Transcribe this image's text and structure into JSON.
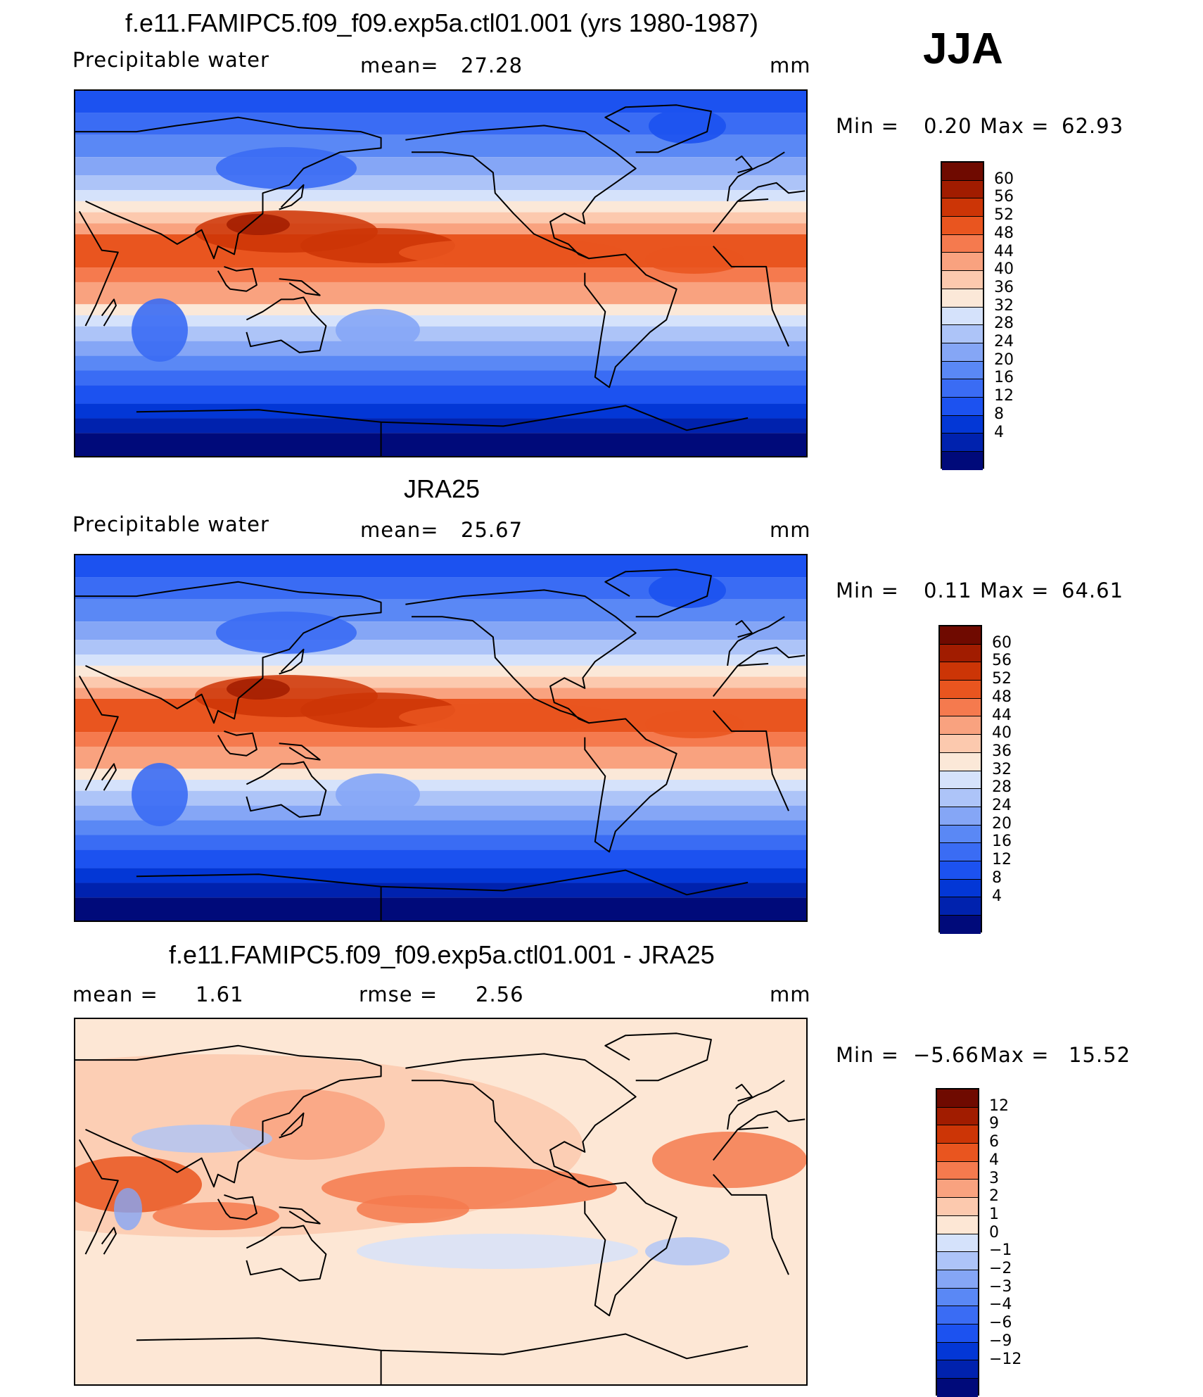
{
  "season": "JJA",
  "units": "mm",
  "palettes": {
    "absolute": [
      "#000a7a",
      "#0022ae",
      "#0337d6",
      "#1c52f0",
      "#3a6cf4",
      "#5a88f5",
      "#85a6f6",
      "#adc4f8",
      "#d5e2fb",
      "#fbe8d8",
      "#fcc9ae",
      "#f9a27f",
      "#f57a4e",
      "#e9551f",
      "#cc3506",
      "#a11c00",
      "#6f0a00"
    ],
    "difference": [
      "#000a7a",
      "#0022ae",
      "#0337d6",
      "#1c52f0",
      "#3a6cf4",
      "#5a88f5",
      "#85a6f6",
      "#adc4f8",
      "#d5e2fb",
      "#fde7d5",
      "#fcc9ae",
      "#f9a27f",
      "#f57a4e",
      "#e9551f",
      "#cc3506",
      "#a11c00",
      "#6f0a00"
    ]
  },
  "panels": [
    {
      "title": "f.e11.FAMIPC5.f09_f09.exp5a.ctl01.001 (yrs 1980-1987)",
      "variable": "Precipitable water",
      "stat1_label": "mean=",
      "stat1_value": "27.28",
      "units": "mm",
      "min_label": "Min =",
      "min_value": "0.20",
      "max_label": "Max =",
      "max_value": "62.93",
      "palette": "absolute",
      "colorbar_levels": [
        "60",
        "56",
        "52",
        "48",
        "44",
        "40",
        "36",
        "32",
        "28",
        "24",
        "20",
        "16",
        "12",
        "8",
        "4"
      ]
    },
    {
      "title": "JRA25",
      "variable": "Precipitable water",
      "stat1_label": "mean=",
      "stat1_value": "25.67",
      "units": "mm",
      "min_label": "Min =",
      "min_value": "0.11",
      "max_label": "Max =",
      "max_value": "64.61",
      "palette": "absolute",
      "colorbar_levels": [
        "60",
        "56",
        "52",
        "48",
        "44",
        "40",
        "36",
        "32",
        "28",
        "24",
        "20",
        "16",
        "12",
        "8",
        "4"
      ]
    },
    {
      "title": "f.e11.FAMIPC5.f09_f09.exp5a.ctl01.001 - JRA25",
      "stat1_label": "mean =",
      "stat1_value": "1.61",
      "stat2_label": "rmse =",
      "stat2_value": "2.56",
      "units": "mm",
      "min_label": "Min =",
      "min_value": "−5.66",
      "max_label": "Max =",
      "max_value": "15.52",
      "palette": "difference",
      "colorbar_levels": [
        "12",
        "9",
        "6",
        "4",
        "3",
        "2",
        "1",
        "0",
        "−1",
        "−2",
        "−3",
        "−4",
        "−6",
        "−9",
        "−12"
      ]
    }
  ]
}
